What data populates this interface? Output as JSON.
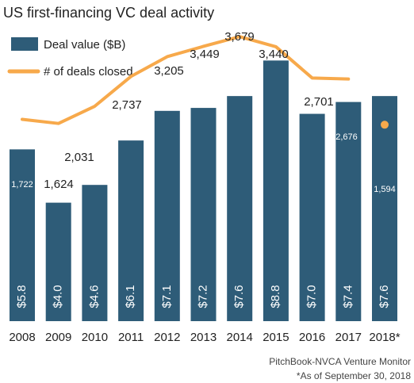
{
  "chart_data": {
    "type": "bar",
    "title": "US first-financing VC deal activity",
    "categories": [
      "2008",
      "2009",
      "2010",
      "2011",
      "2012",
      "2013",
      "2014",
      "2015",
      "2016",
      "2017",
      "2018*"
    ],
    "series": [
      {
        "name": "Deal value ($B)",
        "type": "bar",
        "values": [
          5.8,
          4.0,
          4.6,
          6.1,
          7.1,
          7.2,
          7.6,
          8.8,
          7.0,
          7.4,
          7.6
        ],
        "labels": [
          "$5.8",
          "$4.0",
          "$4.6",
          "$6.1",
          "$7.1",
          "$7.2",
          "$7.6",
          "$8.8",
          "$7.0",
          "$7.4",
          "$7.6"
        ]
      },
      {
        "name": "# of deals closed",
        "type": "line",
        "values": [
          1722,
          1624,
          2031,
          2737,
          3205,
          3449,
          3679,
          3440,
          2701,
          2676,
          1594
        ],
        "labels": [
          "1,722",
          "1,624",
          "2,031",
          "2,737",
          "3,205",
          "3,449",
          "3,679",
          "3,440",
          "2,701",
          "2,676",
          "1,594"
        ]
      }
    ],
    "source": "PitchBook-NVCA Venture Monitor",
    "footnote": "*As of September 30, 2018",
    "grid": false,
    "legend_position": "top-left",
    "colors": {
      "bar": "#2e5c78",
      "line": "#f7a94b",
      "text": "#222222",
      "bar_label": "#ffffff"
    }
  }
}
